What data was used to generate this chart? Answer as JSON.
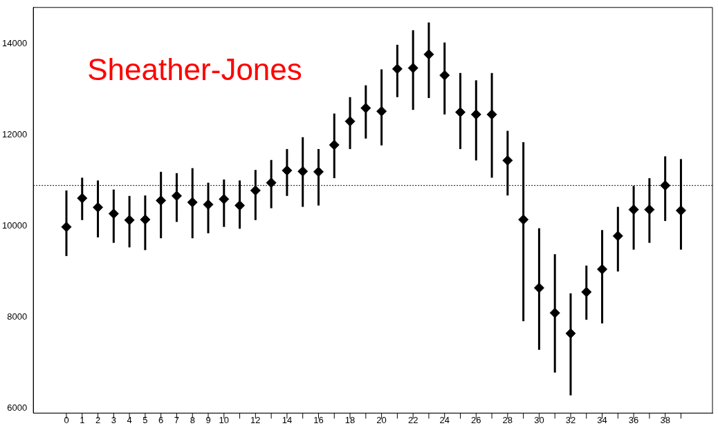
{
  "chart_data": {
    "type": "scatter",
    "title": "Sheather-Jones",
    "x": [
      0,
      1,
      2,
      3,
      4,
      5,
      6,
      7,
      8,
      9,
      10,
      11,
      12,
      13,
      14,
      15,
      16,
      17,
      18,
      19,
      20,
      21,
      22,
      23,
      24,
      25,
      26,
      27,
      28,
      29,
      30,
      31,
      32,
      33,
      34,
      35,
      36,
      37,
      38,
      39
    ],
    "values": [
      9980,
      10610,
      10410,
      10270,
      10130,
      10140,
      10560,
      10660,
      10520,
      10470,
      10590,
      10450,
      10780,
      10950,
      11220,
      11200,
      11190,
      11780,
      12300,
      12590,
      12520,
      13450,
      13470,
      13770,
      13310,
      12500,
      12450,
      12450,
      11440,
      10140,
      8640,
      8090,
      7640,
      8550,
      9050,
      9780,
      10360,
      10360,
      10890,
      10340
    ],
    "errors": [
      [
        9340,
        10780
      ],
      [
        10130,
        11060
      ],
      [
        9750,
        11000
      ],
      [
        9630,
        10800
      ],
      [
        9530,
        10660
      ],
      [
        9470,
        10670
      ],
      [
        9730,
        11190
      ],
      [
        10090,
        11160
      ],
      [
        9730,
        11270
      ],
      [
        9840,
        10950
      ],
      [
        9980,
        11020
      ],
      [
        9940,
        11000
      ],
      [
        10130,
        11230
      ],
      [
        10390,
        11450
      ],
      [
        10660,
        11690
      ],
      [
        10420,
        11950
      ],
      [
        10450,
        11690
      ],
      [
        11050,
        12470
      ],
      [
        11690,
        12830
      ],
      [
        11920,
        13090
      ],
      [
        11770,
        13440
      ],
      [
        12830,
        13980
      ],
      [
        12550,
        14300
      ],
      [
        12810,
        14470
      ],
      [
        12450,
        14030
      ],
      [
        11690,
        13360
      ],
      [
        11440,
        13200
      ],
      [
        11060,
        13360
      ],
      [
        10670,
        12090
      ],
      [
        7910,
        11840
      ],
      [
        7280,
        9950
      ],
      [
        6780,
        9380
      ],
      [
        6280,
        8520
      ],
      [
        7940,
        9130
      ],
      [
        7860,
        9910
      ],
      [
        9000,
        10420
      ],
      [
        9480,
        10880
      ],
      [
        9630,
        11050
      ],
      [
        10110,
        11530
      ],
      [
        9480,
        11470
      ]
    ],
    "color": "#000000",
    "marker": "diamond",
    "xlim": [
      -2.1,
      41
    ],
    "xticks": [
      0,
      1,
      2,
      3,
      4,
      5,
      6,
      7,
      8,
      9,
      10,
      {
        "value": 11,
        "label": null
      },
      12,
      {
        "value": 13,
        "label": null
      },
      14,
      {
        "value": 15,
        "label": null
      },
      16,
      {
        "value": 17,
        "label": null
      },
      18,
      {
        "value": 19,
        "label": null
      },
      20,
      {
        "value": 21,
        "label": null
      },
      22,
      {
        "value": 23,
        "label": null
      },
      24,
      {
        "value": 25,
        "label": null
      },
      26,
      {
        "value": 27,
        "label": null
      },
      28,
      {
        "value": 29,
        "label": null
      },
      30,
      {
        "value": 31,
        "label": null
      },
      32,
      {
        "value": 33,
        "label": null
      },
      34,
      {
        "value": 35,
        "label": null
      },
      36,
      {
        "value": 37,
        "label": null
      },
      38,
      {
        "value": 39,
        "label": null
      }
    ],
    "ylim": [
      5890,
      14800
    ],
    "yticks": [
      6000,
      8000,
      10000,
      12000,
      14000
    ],
    "ref_lines": [
      {
        "axis": "y",
        "value": 10890,
        "line_style": "dotted"
      }
    ]
  }
}
